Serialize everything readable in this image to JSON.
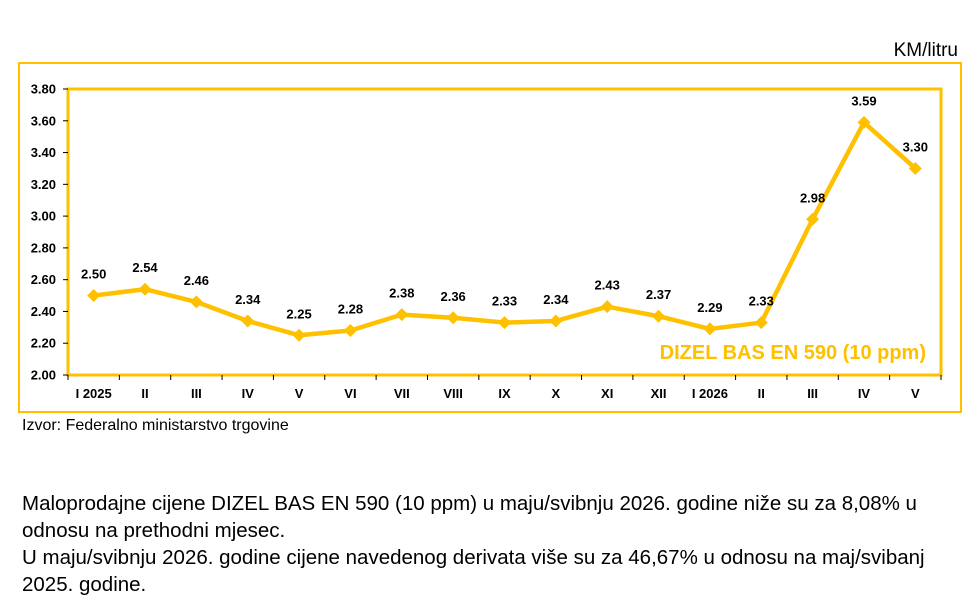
{
  "unit_label": "KM/litru",
  "source": "Izvor: Federalno ministarstvo trgovine",
  "paragraphs": [
    "Maloprodajne cijene DIZEL BAS EN 590 (10 ppm) u maju/svibnju 2026. godine niže su za 8,08% u odnosu na prethodni mjesec.",
    "U maju/svibnju 2026. godine cijene navedenog derivata više su za 46,67% u odnosu na maj/svibanj 2025. godine."
  ],
  "colors": {
    "series": "#FFC000",
    "frame": "#FFC000"
  },
  "chart_data": {
    "type": "line",
    "categories": [
      "I 2025",
      "II",
      "III",
      "IV",
      "V",
      "VI",
      "VII",
      "VIII",
      "IX",
      "X",
      "XI",
      "XII",
      "I 2026",
      "II",
      "III",
      "IV",
      "V"
    ],
    "series": [
      {
        "name": "DIZEL BAS EN 590 (10 ppm)",
        "values": [
          2.5,
          2.54,
          2.46,
          2.34,
          2.25,
          2.28,
          2.38,
          2.36,
          2.33,
          2.34,
          2.43,
          2.37,
          2.29,
          2.33,
          2.98,
          3.59,
          3.3
        ]
      }
    ],
    "data_labels": [
      "2.50",
      "2.54",
      "2.46",
      "2.34",
      "2.25",
      "2.28",
      "2.38",
      "2.36",
      "2.33",
      "2.34",
      "2.43",
      "2.37",
      "2.29",
      "2.33",
      "2.98",
      "3.59",
      "3.30"
    ],
    "yticks": [
      "2.00",
      "2.20",
      "2.40",
      "2.60",
      "2.80",
      "3.00",
      "3.20",
      "3.40",
      "3.60",
      "3.80"
    ],
    "ylim": [
      2.0,
      3.8
    ],
    "ylabel": "KM/litru",
    "grid": false,
    "legend_position": "inside-bottom-right"
  }
}
